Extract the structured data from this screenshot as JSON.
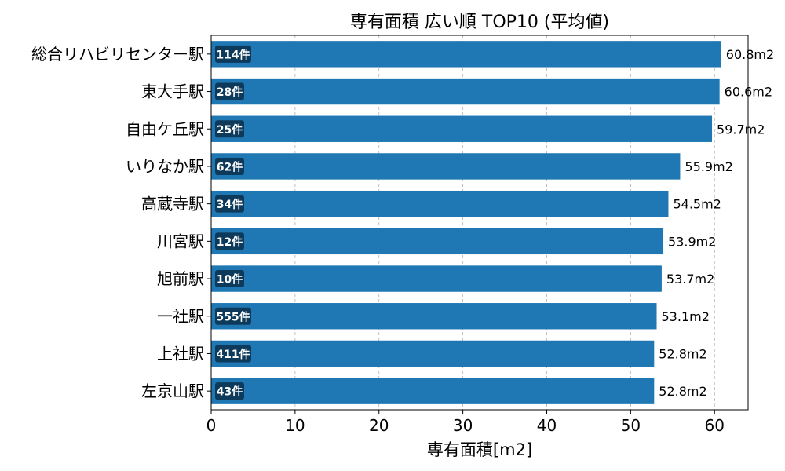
{
  "chart_data": {
    "type": "bar",
    "orientation": "horizontal",
    "title": "専有面積 広い順 TOP10 (平均値)",
    "xlabel": "専有面積[m2]",
    "ylabel": "",
    "xlim": [
      0,
      64
    ],
    "xticks": [
      0,
      10,
      20,
      30,
      40,
      50,
      60
    ],
    "grid": "x-dashed",
    "bar_color": "#1f77b4",
    "count_badge_color": "#0d3a5a",
    "categories": [
      "総合リハビリセンター駅",
      "東大手駅",
      "自由ケ丘駅",
      "いりなか駅",
      "高蔵寺駅",
      "川宮駅",
      "旭前駅",
      "一社駅",
      "上社駅",
      "左京山駅"
    ],
    "values": [
      60.8,
      60.6,
      59.7,
      55.9,
      54.5,
      53.9,
      53.7,
      53.1,
      52.8,
      52.8
    ],
    "value_labels": [
      "60.8m2",
      "60.6m2",
      "59.7m2",
      "55.9m2",
      "54.5m2",
      "53.9m2",
      "53.7m2",
      "53.1m2",
      "52.8m2",
      "52.8m2"
    ],
    "count_labels": [
      "114件",
      "28件",
      "25件",
      "62件",
      "34件",
      "12件",
      "10件",
      "555件",
      "411件",
      "43件"
    ]
  }
}
